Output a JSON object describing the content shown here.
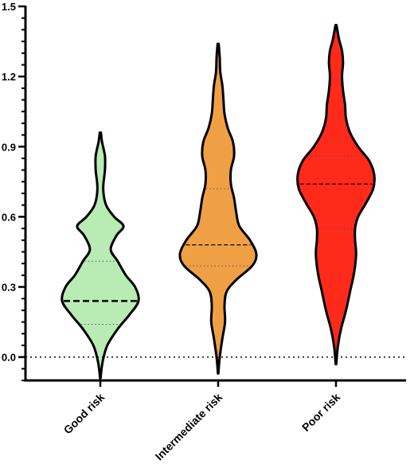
{
  "chart_data": {
    "type": "violin",
    "title": "",
    "xlabel": "",
    "ylabel": "",
    "ylim": [
      -0.1,
      1.5
    ],
    "yticks": [
      "0.0",
      "0.3",
      "0.6",
      "0.9",
      "1.2",
      "1.5"
    ],
    "reference_line": 0.0,
    "categories": [
      "Good risk",
      "Intermediate risk",
      "Poor risk"
    ],
    "colors": {
      "Good risk": "#b8ecb4",
      "Intermediate risk": "#f0a044",
      "Poor risk": "#ff2a1a"
    },
    "series": [
      {
        "category": "Good risk",
        "min": -0.09,
        "max": 0.96,
        "q1": 0.14,
        "median": 0.24,
        "q3": 0.41,
        "density": [
          [
            -0.09,
            0.2
          ],
          [
            -0.02,
            2
          ],
          [
            0.05,
            6
          ],
          [
            0.12,
            15
          ],
          [
            0.18,
            25
          ],
          [
            0.24,
            33
          ],
          [
            0.3,
            30
          ],
          [
            0.35,
            22
          ],
          [
            0.41,
            15
          ],
          [
            0.46,
            9
          ],
          [
            0.52,
            14
          ],
          [
            0.56,
            20
          ],
          [
            0.6,
            12
          ],
          [
            0.65,
            5
          ],
          [
            0.72,
            2.5
          ],
          [
            0.8,
            4
          ],
          [
            0.86,
            4
          ],
          [
            0.92,
            1.5
          ],
          [
            0.96,
            0.5
          ]
        ]
      },
      {
        "category": "Intermediate risk",
        "min": -0.07,
        "max": 1.34,
        "q1": 0.39,
        "median": 0.48,
        "q3": 0.72,
        "density": [
          [
            -0.07,
            0.2
          ],
          [
            0.0,
            1.5
          ],
          [
            0.08,
            4
          ],
          [
            0.15,
            6.5
          ],
          [
            0.22,
            6
          ],
          [
            0.28,
            8
          ],
          [
            0.33,
            17
          ],
          [
            0.39,
            32
          ],
          [
            0.44,
            36
          ],
          [
            0.5,
            30
          ],
          [
            0.56,
            20
          ],
          [
            0.62,
            17
          ],
          [
            0.68,
            15
          ],
          [
            0.74,
            12
          ],
          [
            0.8,
            12
          ],
          [
            0.86,
            15
          ],
          [
            0.92,
            14
          ],
          [
            0.98,
            9
          ],
          [
            1.04,
            6
          ],
          [
            1.1,
            5
          ],
          [
            1.16,
            4
          ],
          [
            1.22,
            2
          ],
          [
            1.28,
            1.5
          ],
          [
            1.34,
            0.5
          ]
        ]
      },
      {
        "category": "Poor risk",
        "min": -0.03,
        "max": 1.42,
        "q1": 0.55,
        "median": 0.74,
        "q3": 0.86,
        "density": [
          [
            -0.03,
            0.3
          ],
          [
            0.05,
            2
          ],
          [
            0.12,
            5
          ],
          [
            0.2,
            10
          ],
          [
            0.28,
            14
          ],
          [
            0.36,
            18
          ],
          [
            0.44,
            20
          ],
          [
            0.5,
            19
          ],
          [
            0.55,
            19
          ],
          [
            0.6,
            22
          ],
          [
            0.66,
            30
          ],
          [
            0.72,
            37
          ],
          [
            0.78,
            38
          ],
          [
            0.84,
            33
          ],
          [
            0.9,
            22
          ],
          [
            0.96,
            14
          ],
          [
            1.02,
            10
          ],
          [
            1.08,
            9
          ],
          [
            1.14,
            7
          ],
          [
            1.2,
            6
          ],
          [
            1.26,
            7
          ],
          [
            1.31,
            6
          ],
          [
            1.36,
            3
          ],
          [
            1.42,
            0.5
          ]
        ]
      }
    ]
  }
}
